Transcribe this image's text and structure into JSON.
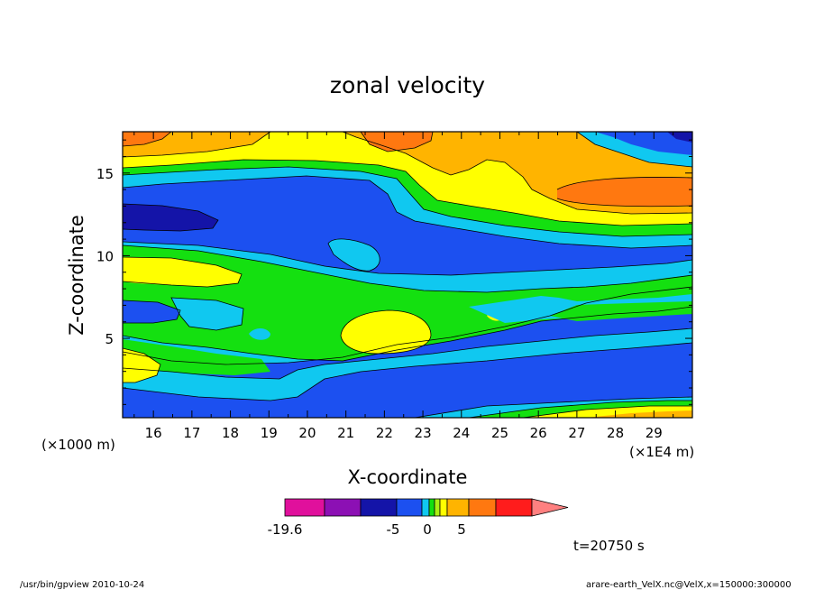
{
  "chart_data": {
    "type": "heatmap",
    "title": "zonal velocity",
    "xlabel": "X-coordinate",
    "ylabel": "Z-coordinate",
    "x_unit_left": "(×1000 m)",
    "x_unit_right": "(×1E4 m)",
    "xlim": [
      15.2,
      30
    ],
    "ylim": [
      0.2,
      17.5
    ],
    "x_ticks": [
      16,
      17,
      18,
      19,
      20,
      21,
      22,
      23,
      24,
      25,
      26,
      27,
      28,
      29
    ],
    "y_ticks": [
      5,
      10,
      15
    ],
    "colorbar": {
      "colors": [
        "#e0109c",
        "#8c10b4",
        "#1414a8",
        "#1c50f0",
        "#10c8f0",
        "#14e010",
        "#aaf014",
        "#ffff00",
        "#ffb400",
        "#ff7810",
        "#ff1c1c",
        "#ff8080"
      ],
      "tick_labels": [
        "-19.6",
        "-5",
        "0",
        "5"
      ]
    },
    "time_label": "t=20750 s"
  },
  "footer": {
    "left": "/usr/bin/gpview  2010-10-24",
    "right": "arare-earth_VelX.nc@VelX,x=150000:300000"
  }
}
